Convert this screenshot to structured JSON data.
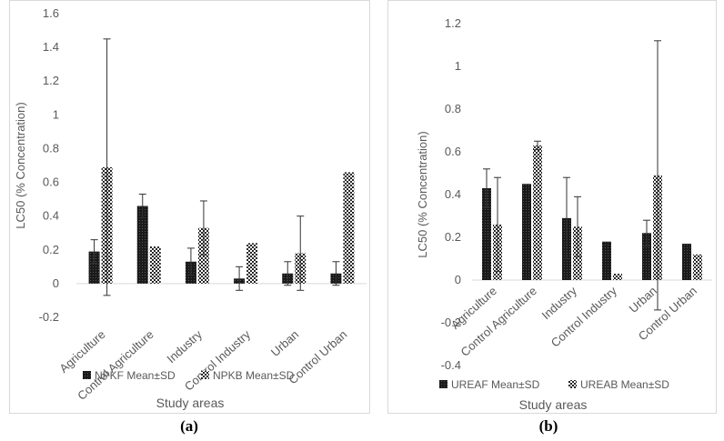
{
  "captions": [
    "(a)",
    "(b)"
  ],
  "chart_data": [
    {
      "type": "bar",
      "panel": "(a)",
      "ylabel": "LC50 (% Concentration)",
      "xlabel": "Study areas",
      "ylim": [
        -0.2,
        1.6
      ],
      "yticks": [
        "-0.2",
        "0",
        "0.2",
        "0.4",
        "0.6",
        "0.8",
        "1",
        "1.2",
        "1.4",
        "1.6"
      ],
      "ytick_values": [
        -0.2,
        0,
        0.2,
        0.4,
        0.6,
        0.8,
        1,
        1.2,
        1.4,
        1.6
      ],
      "categories": [
        "Agriculture",
        "Control Agriculture",
        "Industry",
        "Control Industry",
        "Urban",
        "Control Urban"
      ],
      "series": [
        {
          "name": "NPKF Mean±SD",
          "pattern": "solid-dark",
          "values": [
            0.19,
            0.46,
            0.13,
            0.03,
            0.06,
            0.06
          ],
          "errors": [
            0.07,
            0.07,
            0.08,
            0.07,
            0.07,
            0.07
          ]
        },
        {
          "name": "NPKB Mean±SD",
          "pattern": "checker",
          "values": [
            0.69,
            0.22,
            0.33,
            0.24,
            0.18,
            0.66
          ],
          "errors": [
            0.76,
            0.0,
            0.16,
            0.0,
            0.22,
            0.0
          ]
        }
      ],
      "grid": false,
      "legend": "bottom"
    },
    {
      "type": "bar",
      "panel": "(b)",
      "ylabel": "LC50 (% Concentration)",
      "xlabel": "Study areas",
      "ylim": [
        -0.4,
        1.2
      ],
      "yticks": [
        "-0.4",
        "-0.2",
        "0",
        "0.2",
        "0.4",
        "0.6",
        "0.8",
        "1",
        "1.2"
      ],
      "ytick_values": [
        -0.4,
        -0.2,
        0,
        0.2,
        0.4,
        0.6,
        0.8,
        1,
        1.2
      ],
      "categories": [
        "Agriculture",
        "Control Agriculture",
        "Industry",
        "Control Industry",
        "Urban",
        "Control Urban"
      ],
      "series": [
        {
          "name": "UREAF Mean±SD",
          "pattern": "solid-dark",
          "values": [
            0.43,
            0.45,
            0.29,
            0.18,
            0.22,
            0.17
          ],
          "errors": [
            0.09,
            0.0,
            0.19,
            0.0,
            0.06,
            0.0
          ]
        },
        {
          "name": "UREAB Mean±SD",
          "pattern": "checker",
          "values": [
            0.26,
            0.63,
            0.25,
            0.03,
            0.49,
            0.12
          ],
          "errors": [
            0.22,
            0.02,
            0.14,
            0.0,
            0.63,
            0.0
          ]
        }
      ],
      "grid": false,
      "legend": "bottom"
    }
  ],
  "colors": {
    "bar_dark": "#1a1a1a",
    "checker_dark": "#262626",
    "text": "#595959",
    "axis": "#d9d9d9"
  }
}
